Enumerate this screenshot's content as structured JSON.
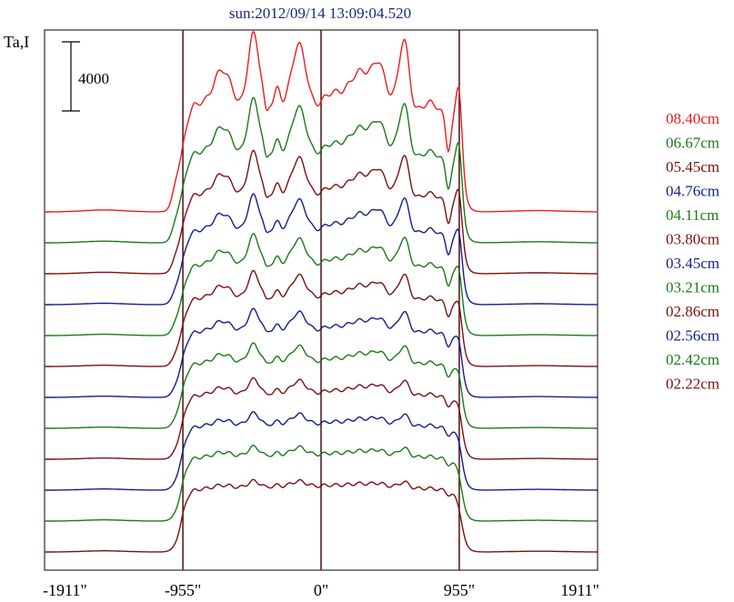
{
  "chart_data": {
    "type": "line",
    "title": "sun:2012/09/14 13:09:04.520",
    "ylabel": "Ta,I",
    "scale_bar_label": "4000",
    "xlim": [
      -1911,
      1911
    ],
    "x_ticks": [
      {
        "value": -1911,
        "label": "-1911\""
      },
      {
        "value": -955,
        "label": "-955\""
      },
      {
        "value": 0,
        "label": "0\""
      },
      {
        "value": 955,
        "label": "955\""
      },
      {
        "value": 1911,
        "label": "1911\""
      }
    ],
    "vlines": [
      -955,
      0,
      955
    ],
    "series": [
      {
        "name": "08.40cm",
        "color": "#ee1c1c",
        "offset": 11,
        "scale": 1.55,
        "active": 1.0
      },
      {
        "name": "06.67cm",
        "color": "#1a7a1a",
        "offset": 10,
        "scale": 1.3,
        "active": 0.9
      },
      {
        "name": "05.45cm",
        "color": "#7a1010",
        "offset": 9,
        "scale": 1.15,
        "active": 0.8
      },
      {
        "name": "04.76cm",
        "color": "#141e8c",
        "offset": 8,
        "scale": 1.08,
        "active": 0.7
      },
      {
        "name": "04.11cm",
        "color": "#1a7a1a",
        "offset": 7,
        "scale": 1.03,
        "active": 0.62
      },
      {
        "name": "03.80cm",
        "color": "#7a1010",
        "offset": 6,
        "scale": 1.0,
        "active": 0.55
      },
      {
        "name": "03.45cm",
        "color": "#141e8c",
        "offset": 5,
        "scale": 0.97,
        "active": 0.46
      },
      {
        "name": "03.21cm",
        "color": "#1a7a1a",
        "offset": 4,
        "scale": 0.96,
        "active": 0.4
      },
      {
        "name": "02.86cm",
        "color": "#7a1010",
        "offset": 3,
        "scale": 0.95,
        "active": 0.33
      },
      {
        "name": "02.56cm",
        "color": "#141e8c",
        "offset": 2,
        "scale": 0.95,
        "active": 0.26
      },
      {
        "name": "02.42cm",
        "color": "#1a7a1a",
        "offset": 1,
        "scale": 0.95,
        "active": 0.2
      },
      {
        "name": "02.22cm",
        "color": "#7a1010",
        "offset": 0,
        "scale": 0.94,
        "active": 0.14
      }
    ]
  }
}
